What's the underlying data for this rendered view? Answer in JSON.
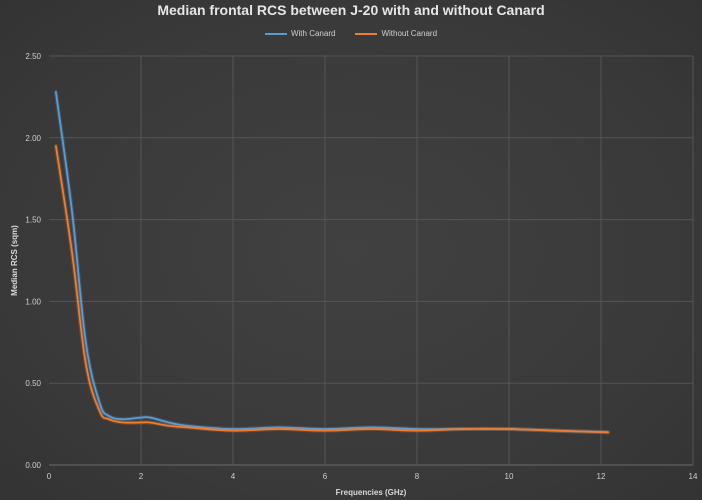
{
  "chart_data": {
    "type": "line",
    "title": "Median frontal RCS between J-20 with and without Canard",
    "xlabel": "Frequencies (GHz)",
    "ylabel": "Median RCS (sqm)",
    "xlim": [
      0,
      14
    ],
    "ylim": [
      0,
      2.5
    ],
    "xticks": [
      0,
      2,
      4,
      6,
      8,
      10,
      12,
      14
    ],
    "yticks": [
      0.0,
      0.5,
      1.0,
      1.5,
      2.0,
      2.5
    ],
    "xtick_labels": [
      "0",
      "2",
      "4",
      "6",
      "8",
      "10",
      "12",
      "14"
    ],
    "ytick_labels": [
      "0.00",
      "0.50",
      "1.00",
      "1.50",
      "2.00",
      "2.50"
    ],
    "grid": true,
    "legend_position": "top",
    "series": [
      {
        "name": "With Canard",
        "color": "#5b9bd5",
        "x": [
          0.15,
          0.5,
          0.8,
          1.1,
          1.3,
          1.6,
          2.0,
          2.2,
          2.6,
          3.0,
          4.0,
          5.0,
          6.0,
          7.0,
          8.0,
          9.0,
          10.0,
          11.0,
          12.15
        ],
        "y": [
          2.28,
          1.55,
          0.75,
          0.38,
          0.3,
          0.28,
          0.29,
          0.29,
          0.26,
          0.24,
          0.22,
          0.23,
          0.22,
          0.23,
          0.22,
          0.22,
          0.22,
          0.21,
          0.2
        ]
      },
      {
        "name": "Without Canard",
        "color": "#ed7d31",
        "x": [
          0.15,
          0.5,
          0.8,
          1.1,
          1.3,
          1.6,
          2.0,
          2.2,
          2.6,
          3.0,
          4.0,
          5.0,
          6.0,
          7.0,
          8.0,
          9.0,
          10.0,
          11.0,
          12.15
        ],
        "y": [
          1.95,
          1.3,
          0.62,
          0.33,
          0.28,
          0.26,
          0.26,
          0.26,
          0.24,
          0.23,
          0.21,
          0.22,
          0.21,
          0.22,
          0.21,
          0.22,
          0.22,
          0.21,
          0.2
        ]
      }
    ]
  }
}
